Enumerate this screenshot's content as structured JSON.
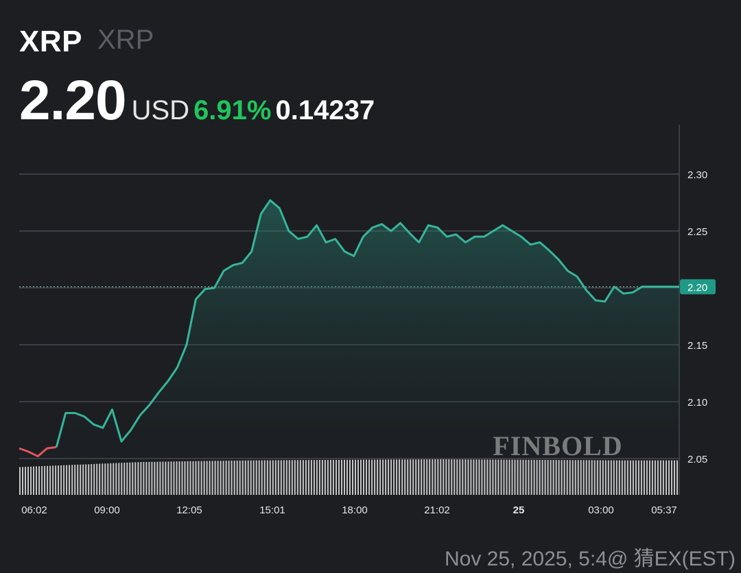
{
  "header": {
    "symbol": "XRP",
    "name": "XRP",
    "price": "2.20",
    "currency": "USD",
    "change_pct": "6.91%",
    "change_abs": "0.14237"
  },
  "watermark": "FINBOLD",
  "footer": {
    "timestamp": "Nov 25, 2025, 5:4",
    "credit": "@ 猜EX",
    "tz": "(EST)"
  },
  "colors": {
    "background": "#1c1e22",
    "line_up": "#36b59b",
    "line_down": "#e0555f",
    "positive": "#21c45d",
    "price_tag": "#1f9a86",
    "grid": "#5a5d63",
    "volume": "#d9d9d9"
  },
  "chart_data": {
    "type": "area",
    "x_tick_labels": [
      "06:02",
      "09:00",
      "12:05",
      "15:01",
      "18:00",
      "21:02",
      "25",
      "03:00",
      "05:37"
    ],
    "y_ticks": [
      2.05,
      2.1,
      2.15,
      2.2,
      2.25,
      2.3
    ],
    "y_tick_labels": [
      "2.05",
      "2.10",
      "2.15",
      "2.20",
      "2.25",
      "2.30"
    ],
    "ylim": [
      2.05,
      2.3
    ],
    "current_price_label": "2.20",
    "current_price": 2.201,
    "grid": true,
    "series": [
      {
        "x": [
          "06:02",
          "06:30",
          "07:00",
          "07:30",
          "08:00",
          "08:20",
          "08:40",
          "09:00",
          "09:20",
          "09:40",
          "09:50",
          "10:00",
          "10:20",
          "10:40",
          "11:00",
          "11:20",
          "11:40",
          "12:05",
          "12:20",
          "12:40",
          "13:00",
          "13:20",
          "13:40",
          "14:00",
          "14:20",
          "14:40",
          "15:01",
          "15:10",
          "15:20",
          "15:40",
          "16:00",
          "16:20",
          "16:40",
          "17:00",
          "17:20",
          "17:40",
          "18:00",
          "18:20",
          "18:40",
          "19:00",
          "19:20",
          "19:40",
          "20:00",
          "20:20",
          "20:40",
          "21:02",
          "21:20",
          "21:40",
          "22:00",
          "22:20",
          "22:40",
          "23:00",
          "23:20",
          "23:40",
          "00:00",
          "00:20",
          "00:40",
          "01:00",
          "01:20",
          "01:40",
          "02:00",
          "02:20",
          "02:40",
          "03:00",
          "03:20",
          "03:40",
          "04:00",
          "04:20",
          "04:40",
          "05:00",
          "05:20",
          "05:37"
        ],
        "values": [
          2.059,
          2.056,
          2.052,
          2.059,
          2.06,
          2.09,
          2.09,
          2.087,
          2.08,
          2.077,
          2.093,
          2.065,
          2.075,
          2.088,
          2.097,
          2.108,
          2.118,
          2.13,
          2.15,
          2.19,
          2.199,
          2.2,
          2.215,
          2.22,
          2.222,
          2.232,
          2.265,
          2.277,
          2.27,
          2.25,
          2.243,
          2.245,
          2.255,
          2.24,
          2.243,
          2.232,
          2.228,
          2.245,
          2.253,
          2.256,
          2.25,
          2.257,
          2.248,
          2.24,
          2.255,
          2.253,
          2.245,
          2.247,
          2.24,
          2.245,
          2.245,
          2.25,
          2.255,
          2.25,
          2.245,
          2.238,
          2.24,
          2.233,
          2.225,
          2.215,
          2.21,
          2.198,
          2.189,
          2.188,
          2.201,
          2.195,
          2.196,
          2.201,
          2.201,
          2.201,
          2.201,
          2.201
        ]
      }
    ],
    "red_segment_end_index": 4,
    "volume": {
      "bars": 240,
      "relative_heights": [
        0.78,
        0.85,
        0.92,
        0.95,
        0.97,
        0.98,
        0.99,
        1.0,
        0.99,
        0.98,
        0.97,
        0.97
      ]
    }
  }
}
